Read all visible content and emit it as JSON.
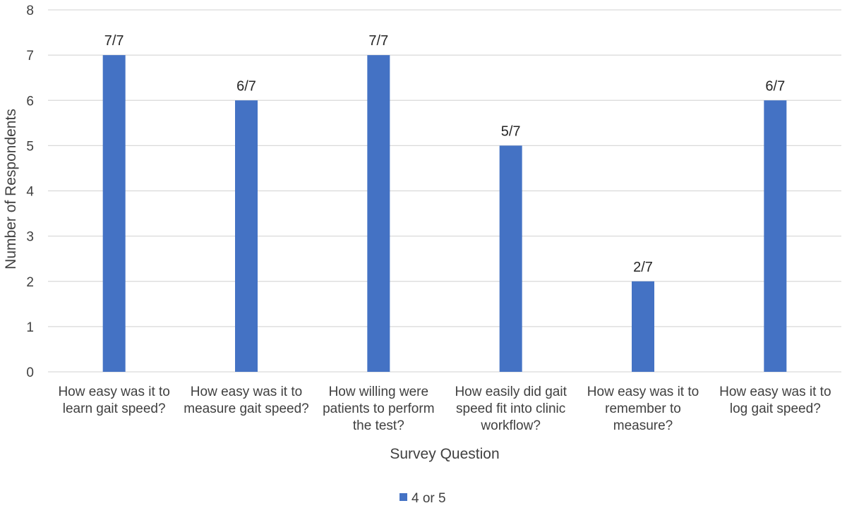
{
  "chart_data": {
    "type": "bar",
    "categories": [
      [
        "How easy was it to",
        "learn gait speed?"
      ],
      [
        "How easy was it to",
        "measure gait speed?"
      ],
      [
        "How willing were",
        "patients to perform",
        "the test?"
      ],
      [
        "How easily did gait",
        "speed fit into clinic",
        "workflow?"
      ],
      [
        "How easy was it to",
        "remember to",
        "measure?"
      ],
      [
        "How easy was it to",
        "log gait speed?"
      ]
    ],
    "series": [
      {
        "name": "4 or 5",
        "color": "#4472C4",
        "values": [
          7,
          6,
          7,
          5,
          2,
          6
        ],
        "data_labels": [
          "7/7",
          "6/7",
          "7/7",
          "5/7",
          "2/7",
          "6/7"
        ]
      }
    ],
    "title": "",
    "xlabel": "Survey Question",
    "ylabel": "Number of Respondents",
    "ylim": [
      0,
      8
    ],
    "yticks": [
      "0",
      "1",
      "2",
      "3",
      "4",
      "5",
      "6",
      "7",
      "8"
    ],
    "grid": true,
    "legend_position": "bottom"
  }
}
